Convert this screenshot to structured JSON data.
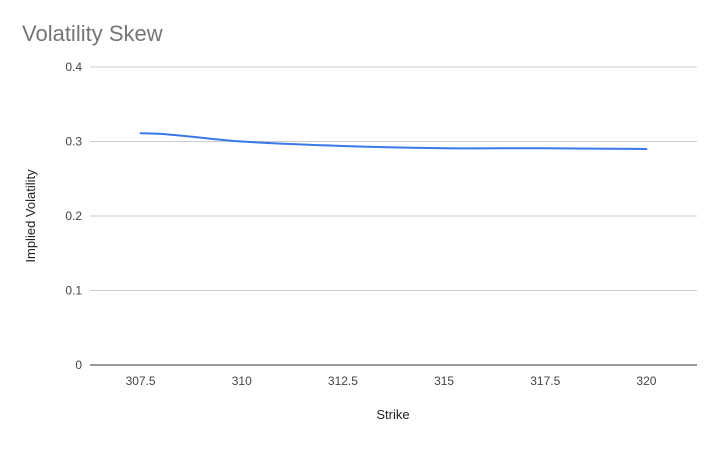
{
  "chart_data": {
    "type": "line",
    "title": "Volatility Skew",
    "xlabel": "Strike",
    "ylabel": "Implied Volatility",
    "categories": [
      "307.5",
      "310",
      "312.5",
      "315",
      "317.5",
      "320"
    ],
    "series": [
      {
        "values": [
          0.311,
          0.3,
          0.294,
          0.291,
          0.291,
          0.29
        ],
        "color": "#3b78e7"
      }
    ],
    "ylim": [
      0,
      0.4
    ],
    "yticks": [
      "0",
      "0.1",
      "0.2",
      "0.3",
      "0.4"
    ],
    "grid": true,
    "legend": "none"
  }
}
